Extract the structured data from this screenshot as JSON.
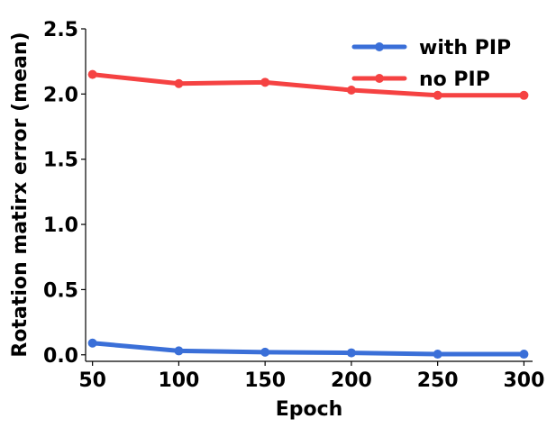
{
  "chart_data": {
    "type": "line",
    "title": "",
    "xlabel": "Epoch",
    "ylabel": "Rotation matirx error (mean)",
    "x": [
      50,
      100,
      150,
      200,
      250,
      300
    ],
    "x_ticks": [
      "50",
      "100",
      "150",
      "200",
      "250",
      "300"
    ],
    "y_ticks": [
      "0.0",
      "0.5",
      "1.0",
      "1.5",
      "2.0",
      "2.5"
    ],
    "xlim": [
      46,
      305
    ],
    "ylim": [
      -0.05,
      2.5
    ],
    "grid": false,
    "legend_position": "top-right",
    "series": [
      {
        "name": "with PIP",
        "color": "#3a6fd8",
        "values": [
          0.09,
          0.03,
          0.02,
          0.015,
          0.005,
          0.005
        ]
      },
      {
        "name": "no PIP",
        "color": "#f54242",
        "values": [
          2.15,
          2.08,
          2.09,
          2.03,
          1.99,
          1.99
        ]
      }
    ]
  }
}
